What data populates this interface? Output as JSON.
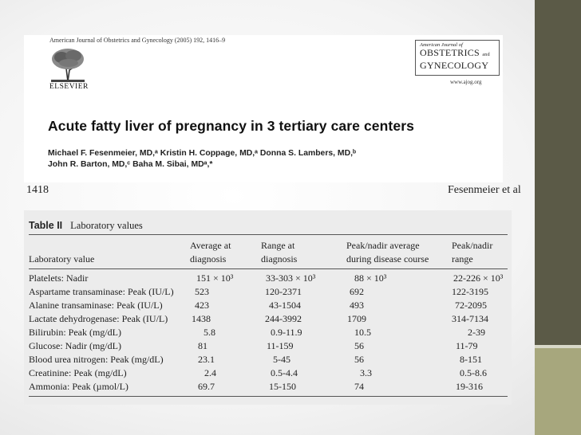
{
  "slide": {
    "accent_dark": "#5b5a47",
    "accent_light": "#a7a77d"
  },
  "article": {
    "journal_citation": "American Journal of Obstetrics and Gynecology (2005) 192, 1416–9",
    "publisher": "ELSEVIER",
    "ajog_logo": {
      "top": "American Journal of",
      "line1": "OBSTETRICS",
      "and": "and",
      "line2": "GYNECOLOGY"
    },
    "ajog_url": "www.ajog.org",
    "title": "Acute fatty liver of pregnancy in 3 tertiary care centers",
    "authors_line1": "Michael F. Fesenmeier, MD,ᵃ Kristin H. Coppage, MD,ᵃ Donna S. Lambers, MD,ᵇ",
    "authors_line2": "John R. Barton, MD,ᶜ Baha M. Sibai, MDᵃ,*"
  },
  "page_header": {
    "page_number": "1418",
    "running_head": "Fesenmeier et al"
  },
  "table": {
    "label": "Table II",
    "caption": "Laboratory values",
    "headers": {
      "lab": "Laboratory value",
      "avg_l1": "Average at",
      "avg_l2": "diagnosis",
      "range_l1": "Range at",
      "range_l2": "diagnosis",
      "peak_avg_l1": "Peak/nadir average",
      "peak_avg_l2": "during disease course",
      "peak_range_l1": "Peak/nadir",
      "peak_range_l2": "range"
    },
    "rows": [
      {
        "label": "Platelets: Nadir",
        "avg": "151 × 10³",
        "range": "33-303 × 10³",
        "peak_avg": "88 × 10³",
        "peak_range": "22-226 × 10³"
      },
      {
        "label": "Aspartame transaminase: Peak (IU/L)",
        "avg": "523",
        "range": "120-2371",
        "peak_avg": "692",
        "peak_range": "122-3195"
      },
      {
        "label": "Alanine transaminase: Peak (IU/L)",
        "avg": "423",
        "range": "43-1504",
        "peak_avg": "493",
        "peak_range": "72-2095"
      },
      {
        "label": "Lactate dehydrogenase: Peak (IU/L)",
        "avg": "1438",
        "range": "244-3992",
        "peak_avg": "1709",
        "peak_range": "314-7134"
      },
      {
        "label": "Bilirubin: Peak (mg/dL)",
        "avg": "5.8",
        "range": "0.9-11.9",
        "peak_avg": "10.5",
        "peak_range": "2-39"
      },
      {
        "label": "Glucose: Nadir (mg/dL)",
        "avg": "81",
        "range": "11-159",
        "peak_avg": "56",
        "peak_range": "11-79"
      },
      {
        "label": "Blood urea nitrogen: Peak (mg/dL)",
        "avg": "23.1",
        "range": "5-45",
        "peak_avg": "56",
        "peak_range": "8-151"
      },
      {
        "label": "Creatinine: Peak (mg/dL)",
        "avg": "2.4",
        "range": "0.5-4.4",
        "peak_avg": "3.3",
        "peak_range": "0.5-8.6"
      },
      {
        "label": "Ammonia: Peak (µmol/L)",
        "avg": "69.7",
        "range": "15-150",
        "peak_avg": "74",
        "peak_range": "19-316"
      }
    ]
  }
}
